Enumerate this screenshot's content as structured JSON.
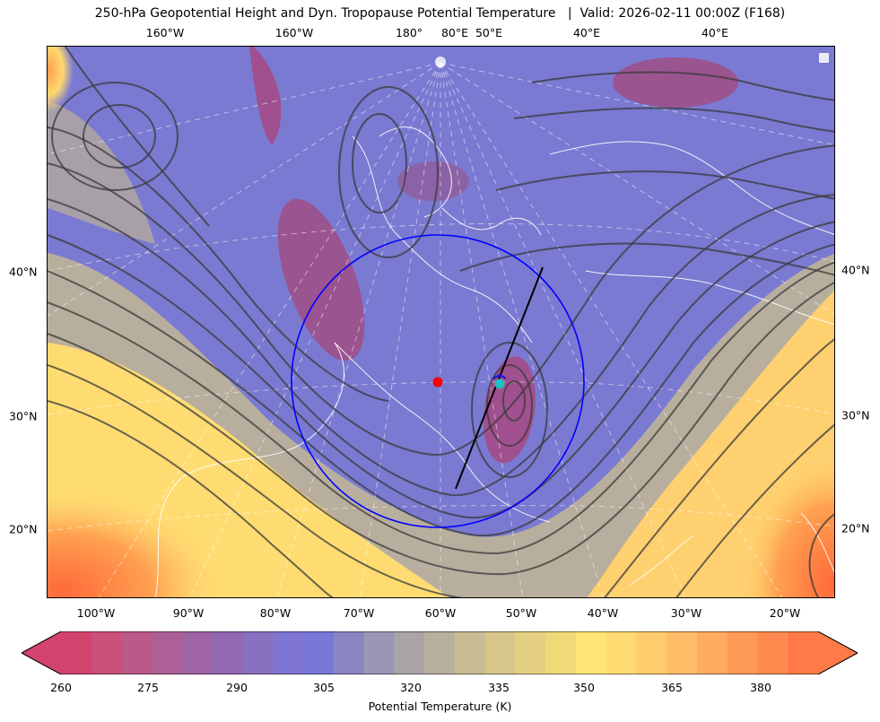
{
  "title": "250-hPa Geopotential Height and Dyn. Tropopause Potential Temperature   |  Valid: 2026-02-11 00:00Z (F168)",
  "top_labels": [
    "160°W",
    "160°W",
    "180°",
    "80°E",
    "50°E",
    "40°E",
    "40°E"
  ],
  "bottom_labels": [
    "100°W",
    "90°W",
    "80°W",
    "70°W",
    "60°W",
    "50°W",
    "40°W",
    "30°W",
    "20°W"
  ],
  "left_labels": [
    "40°N",
    "30°N",
    "20°N"
  ],
  "right_labels": [
    "40°N",
    "30°N",
    "20°N"
  ],
  "colorbar": {
    "ticks": [
      "260",
      "275",
      "290",
      "305",
      "320",
      "335",
      "350",
      "365",
      "380"
    ],
    "label": "Potential Temperature (K)",
    "colors": [
      "#d2446e",
      "#c8507a",
      "#bb5a88",
      "#ad6096",
      "#9f64a4",
      "#9268b2",
      "#8a70c0",
      "#7e76d2",
      "#7a78d6",
      "#8a86c4",
      "#9a96b4",
      "#aaa4a8",
      "#b8b09e",
      "#c8bc94",
      "#d6c68a",
      "#e4d080",
      "#f0da78",
      "#ffe676",
      "#ffda70",
      "#ffcc6c",
      "#ffbc66",
      "#ffac5e",
      "#ff9a56",
      "#ff8a50",
      "#ff7a48"
    ],
    "colors_meaning": "colormap swatches for 260-385 K in 5 K steps"
  },
  "annotations": {
    "circle_color": "#0000ff",
    "cross_section_line_color": "#000000",
    "red_marker_color": "#ff0000",
    "cyan_marker_color": "#20c0c0"
  }
}
